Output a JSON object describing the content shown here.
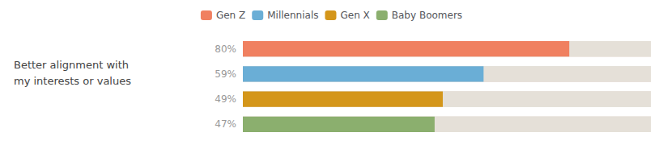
{
  "chart_data": {
    "type": "bar",
    "orientation": "horizontal",
    "title": "Better alignment with\nmy interests or values",
    "categories": [
      "Gen Z",
      "Millennials",
      "Gen X",
      "Baby Boomers"
    ],
    "values": [
      80,
      59,
      49,
      47
    ],
    "value_labels": [
      "80%",
      "59%",
      "49%",
      "47%"
    ],
    "colors": [
      "#F08060",
      "#6AAED6",
      "#D4961A",
      "#8BAF6E"
    ],
    "xlim": [
      0,
      100
    ],
    "data_labels": true,
    "tick_labels": false,
    "grid": false,
    "legend": "top"
  }
}
